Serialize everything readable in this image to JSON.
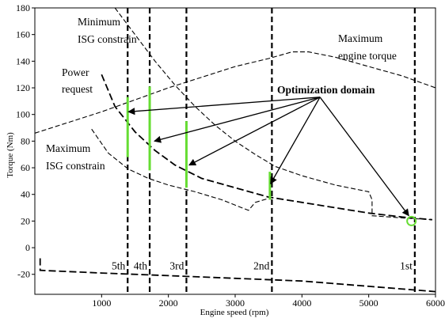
{
  "chart_data": {
    "type": "line",
    "xlabel": "Engine speed (rpm)",
    "ylabel": "Torque (Nm)",
    "xlim": [
      0,
      6000
    ],
    "ylim": [
      -35,
      180
    ],
    "x_ticks": [
      {
        "value": 1000,
        "label": "1000"
      },
      {
        "value": 2000,
        "label": "2000"
      },
      {
        "value": 3000,
        "label": "3000"
      },
      {
        "value": 4000,
        "label": "4000"
      },
      {
        "value": 5000,
        "label": "5000"
      },
      {
        "value": 6000,
        "label": "6000"
      }
    ],
    "y_ticks": [
      {
        "value": 180,
        "label": "180"
      },
      {
        "value": 160,
        "label": "160"
      },
      {
        "value": 140,
        "label": "140"
      },
      {
        "value": 120,
        "label": "120"
      },
      {
        "value": 100,
        "label": "100"
      },
      {
        "value": 80,
        "label": "80"
      },
      {
        "value": 60,
        "label": "60"
      },
      {
        "value": 40,
        "label": "40"
      },
      {
        "value": 20,
        "label": "20"
      },
      {
        "value": 0,
        "label": "0"
      },
      {
        "value": -20,
        "label": "-20"
      }
    ],
    "curves": [
      {
        "key": "max_engine_torque",
        "style": "dash-fine",
        "points": [
          [
            0,
            86
          ],
          [
            500,
            94
          ],
          [
            1000,
            102
          ],
          [
            1500,
            111
          ],
          [
            2000,
            120
          ],
          [
            2500,
            128
          ],
          [
            3000,
            136
          ],
          [
            3500,
            142
          ],
          [
            3850,
            147
          ],
          [
            4100,
            147
          ],
          [
            4500,
            143
          ],
          [
            5000,
            136
          ],
          [
            5500,
            129
          ],
          [
            6000,
            120
          ]
        ]
      },
      {
        "key": "min_isg_constrain",
        "style": "dash-fine",
        "points": [
          [
            1200,
            180
          ],
          [
            1500,
            160
          ],
          [
            1800,
            140
          ],
          [
            2100,
            122
          ],
          [
            2400,
            106
          ],
          [
            2700,
            92
          ],
          [
            3000,
            80
          ],
          [
            3300,
            70
          ],
          [
            3600,
            61
          ],
          [
            4000,
            54
          ],
          [
            4500,
            47
          ],
          [
            5000,
            42
          ],
          [
            5050,
            36
          ],
          [
            5050,
            24
          ],
          [
            5600,
            22
          ],
          [
            5950,
            21
          ]
        ]
      },
      {
        "key": "power_request",
        "style": "dash-bold",
        "points": [
          [
            1000,
            130
          ],
          [
            1200,
            106
          ],
          [
            1500,
            87
          ],
          [
            1800,
            73
          ],
          [
            2100,
            62
          ],
          [
            2500,
            52
          ],
          [
            3000,
            45
          ],
          [
            3500,
            38
          ],
          [
            4000,
            34
          ],
          [
            4500,
            30
          ],
          [
            5000,
            26
          ],
          [
            5500,
            23
          ],
          [
            5950,
            21
          ]
        ]
      },
      {
        "key": "max_isg_constrain",
        "style": "dash-fine",
        "points": [
          [
            850,
            89
          ],
          [
            1100,
            71
          ],
          [
            1400,
            59
          ],
          [
            1700,
            52
          ],
          [
            2000,
            47
          ],
          [
            2400,
            42
          ],
          [
            2800,
            36
          ],
          [
            3100,
            30
          ],
          [
            3200,
            28
          ],
          [
            3300,
            34
          ],
          [
            3500,
            37
          ]
        ]
      },
      {
        "key": "min_engine_torque",
        "style": "dash-bold",
        "points": [
          [
            80,
            -8
          ],
          [
            80,
            -17
          ],
          [
            1000,
            -19
          ],
          [
            2000,
            -21
          ],
          [
            3000,
            -23
          ],
          [
            4000,
            -25
          ],
          [
            5000,
            -29
          ],
          [
            6000,
            -33
          ]
        ]
      }
    ],
    "gear_lines": [
      {
        "x": 1390,
        "label": "5th"
      },
      {
        "x": 1720,
        "label": "4th"
      },
      {
        "x": 2270,
        "label": "3rd"
      },
      {
        "x": 3550,
        "label": "2nd"
      },
      {
        "x": 5690,
        "label": "1st"
      }
    ],
    "optimization_segments": [
      {
        "x": 1390,
        "y_from": 68,
        "y_to": 113
      },
      {
        "x": 1720,
        "y_from": 58,
        "y_to": 121
      },
      {
        "x": 2270,
        "y_from": 45,
        "y_to": 95
      },
      {
        "x": 3520,
        "y_from": 36,
        "y_to": 57
      }
    ],
    "optimal_point": {
      "x": 5640,
      "y": 20
    },
    "arrow_source": {
      "x": 4270,
      "y": 113
    },
    "arrow_targets": [
      {
        "x": 1400,
        "y": 102
      },
      {
        "x": 1790,
        "y": 80
      },
      {
        "x": 2310,
        "y": 62
      },
      {
        "x": 3530,
        "y": 48
      },
      {
        "x": 5600,
        "y": 24
      }
    ],
    "annotations": [
      {
        "key": "min_isg",
        "lines": [
          "Minimum",
          "ISG constrain"
        ]
      },
      {
        "key": "max_engine",
        "lines": [
          "Maximum",
          "engine torque"
        ]
      },
      {
        "key": "power_request",
        "lines": [
          "Power",
          "request"
        ]
      },
      {
        "key": "max_isg",
        "lines": [
          "Maximum",
          "ISG constrain"
        ]
      },
      {
        "key": "opt_domain",
        "lines": [
          "Optimization domain"
        ]
      }
    ],
    "colors": {
      "curve": "#000000",
      "optimization_segment": "#66dd33",
      "optimal_point": "#66dd33"
    }
  }
}
